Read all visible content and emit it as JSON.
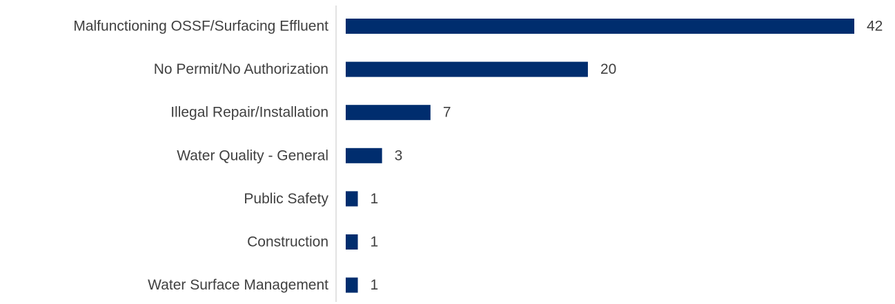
{
  "chart_data": {
    "type": "bar",
    "orientation": "horizontal",
    "title": "",
    "xlabel": "",
    "ylabel": "",
    "categories": [
      "Malfunctioning OSSF/Surfacing Effluent",
      "No Permit/No Authorization",
      "Illegal Repair/Installation",
      "Water Quality - General",
      "Public Safety",
      "Construction",
      "Water Surface Management"
    ],
    "values": [
      42,
      20,
      7,
      3,
      1,
      1,
      1
    ],
    "xlim": [
      0,
      42
    ],
    "grid": false,
    "legend": "none",
    "data_labels": true,
    "colors": {
      "bar": "#002D6E",
      "axis": "#D9D9D9",
      "text": "#404040"
    }
  }
}
